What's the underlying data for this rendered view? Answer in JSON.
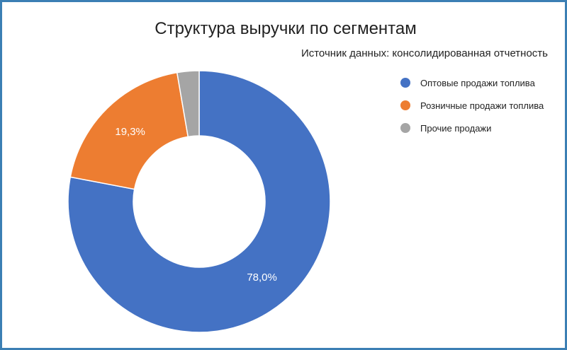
{
  "chart_data": {
    "type": "pie",
    "donut": true,
    "title": "Структура выручки по сегментам",
    "subtitle": "Источник данных: консолидированная отчетность",
    "legend_position": "right",
    "slices": [
      {
        "name": "Оптовые продажи топлива",
        "value": 78.0,
        "label": "78,0%",
        "color": "#4472c4"
      },
      {
        "name": "Розничные продажи топлива",
        "value": 19.3,
        "label": "19,3%",
        "color": "#ed7d31"
      },
      {
        "name": "Прочие продажи",
        "value": 2.7,
        "label": "",
        "color": "#a5a5a5"
      }
    ]
  }
}
